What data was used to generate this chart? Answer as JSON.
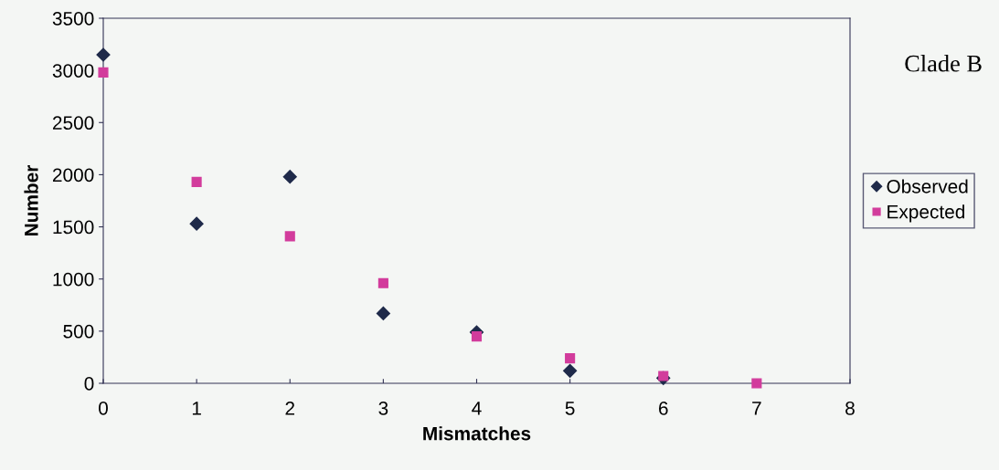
{
  "chart_data": {
    "type": "scatter",
    "title": "Clade B",
    "xlabel": "Mismatches",
    "ylabel": "Number",
    "x": [
      0,
      1,
      2,
      3,
      4,
      5,
      6,
      7
    ],
    "series": [
      {
        "name": "Observed",
        "color": "#1f2a4a",
        "marker": "diamond",
        "values": [
          3150,
          1530,
          1980,
          670,
          490,
          120,
          50,
          null
        ]
      },
      {
        "name": "Expected",
        "color": "#d23c9c",
        "marker": "square",
        "values": [
          2980,
          1930,
          1410,
          960,
          450,
          240,
          70,
          0
        ]
      }
    ],
    "xlim": [
      0,
      8
    ],
    "xticks": [
      0,
      1,
      2,
      3,
      4,
      5,
      6,
      7,
      8
    ],
    "ylim": [
      0,
      3500
    ],
    "yticks": [
      0,
      500,
      1000,
      1500,
      2000,
      2500,
      3000,
      3500
    ],
    "grid": false,
    "legend": "right"
  }
}
